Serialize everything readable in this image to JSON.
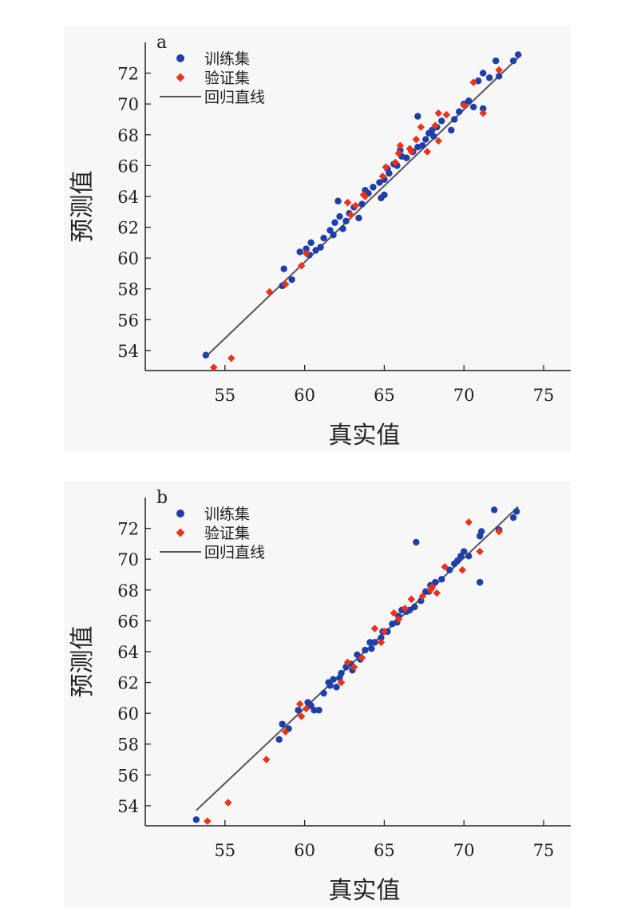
{
  "colors": {
    "train": "#1f3fa8",
    "valid": "#e8341c",
    "line": "#555555",
    "axis": "#222222"
  },
  "chart_data": [
    {
      "type": "scatter",
      "panel_label": "a",
      "xlabel": "真实值",
      "ylabel": "预测值",
      "xlim": [
        50,
        76.7
      ],
      "ylim": [
        52.7,
        74
      ],
      "xticks": [
        55,
        60,
        65,
        70,
        75
      ],
      "yticks": [
        54,
        56,
        58,
        60,
        62,
        64,
        66,
        68,
        70,
        72
      ],
      "grid": false,
      "legend_position": "top-left",
      "legend": [
        "训练集",
        "验证集",
        "回归直线"
      ],
      "regression_line": {
        "from": [
          53.8,
          53.6
        ],
        "to": [
          73.6,
          73.2
        ]
      },
      "series": [
        {
          "name": "训练集",
          "marker": "circle",
          "points": [
            [
              53.8,
              53.7
            ],
            [
              58.6,
              58.2
            ],
            [
              58.7,
              59.3
            ],
            [
              59.2,
              58.6
            ],
            [
              59.7,
              60.4
            ],
            [
              60.1,
              60.6
            ],
            [
              60.4,
              61.0
            ],
            [
              60.7,
              60.5
            ],
            [
              61.0,
              60.7
            ],
            [
              61.2,
              61.3
            ],
            [
              61.6,
              61.8
            ],
            [
              61.9,
              62.3
            ],
            [
              62.2,
              62.7
            ],
            [
              62.1,
              63.7
            ],
            [
              62.4,
              61.9
            ],
            [
              62.8,
              62.9
            ],
            [
              63.1,
              63.3
            ],
            [
              63.6,
              63.5
            ],
            [
              63.8,
              64.4
            ],
            [
              64.0,
              64.2
            ],
            [
              64.3,
              64.6
            ],
            [
              64.7,
              64.9
            ],
            [
              65.0,
              65.1
            ],
            [
              65.0,
              64.1
            ],
            [
              65.3,
              65.5
            ],
            [
              65.6,
              66.1
            ],
            [
              65.8,
              66.0
            ],
            [
              66.1,
              66.6
            ],
            [
              66.4,
              66.5
            ],
            [
              66.8,
              66.9
            ],
            [
              67.1,
              67.2
            ],
            [
              67.1,
              69.2
            ],
            [
              67.4,
              67.3
            ],
            [
              67.8,
              68.1
            ],
            [
              68.1,
              67.9
            ],
            [
              68.3,
              68.5
            ],
            [
              68.6,
              68.9
            ],
            [
              69.2,
              68.3
            ],
            [
              69.4,
              69.0
            ],
            [
              69.7,
              69.5
            ],
            [
              70.0,
              70.0
            ],
            [
              70.3,
              70.2
            ],
            [
              70.6,
              69.8
            ],
            [
              70.9,
              71.5
            ],
            [
              71.2,
              72.0
            ],
            [
              71.2,
              69.7
            ],
            [
              71.6,
              71.7
            ],
            [
              72.0,
              72.8
            ],
            [
              72.2,
              71.8
            ],
            [
              73.1,
              72.8
            ],
            [
              73.4,
              73.2
            ],
            [
              64.8,
              63.9
            ],
            [
              61.8,
              61.5
            ],
            [
              63.4,
              62.6
            ],
            [
              66.0,
              67.0
            ],
            [
              68.0,
              68.3
            ],
            [
              60.3,
              60.2
            ],
            [
              62.6,
              62.4
            ],
            [
              65.2,
              65.8
            ],
            [
              67.6,
              67.7
            ]
          ]
        },
        {
          "name": "验证集",
          "marker": "diamond",
          "points": [
            [
              54.3,
              52.9
            ],
            [
              55.4,
              53.5
            ],
            [
              57.8,
              57.8
            ],
            [
              58.8,
              58.3
            ],
            [
              59.8,
              59.5
            ],
            [
              60.1,
              60.3
            ],
            [
              62.7,
              63.6
            ],
            [
              63.2,
              63.4
            ],
            [
              63.8,
              64.0
            ],
            [
              64.9,
              65.3
            ],
            [
              65.1,
              65.9
            ],
            [
              65.7,
              66.2
            ],
            [
              65.9,
              66.8
            ],
            [
              66.0,
              67.3
            ],
            [
              66.7,
              66.9
            ],
            [
              67.0,
              67.7
            ],
            [
              67.3,
              68.5
            ],
            [
              67.7,
              66.9
            ],
            [
              68.2,
              68.6
            ],
            [
              68.4,
              69.4
            ],
            [
              68.9,
              69.3
            ],
            [
              70.0,
              69.9
            ],
            [
              70.6,
              71.4
            ],
            [
              71.2,
              69.4
            ],
            [
              72.2,
              72.2
            ],
            [
              62.9,
              62.8
            ],
            [
              63.7,
              64.1
            ],
            [
              66.6,
              67.1
            ],
            [
              68.4,
              67.6
            ]
          ]
        }
      ]
    },
    {
      "type": "scatter",
      "panel_label": "b",
      "xlabel": "真实值",
      "ylabel": "预测值",
      "xlim": [
        50,
        76.7
      ],
      "ylim": [
        52.7,
        74
      ],
      "xticks": [
        55,
        60,
        65,
        70,
        75
      ],
      "yticks": [
        54,
        56,
        58,
        60,
        62,
        64,
        66,
        68,
        70,
        72
      ],
      "grid": false,
      "legend_position": "top-left",
      "legend": [
        "训练集",
        "验证集",
        "回归直线"
      ],
      "regression_line": {
        "from": [
          53.2,
          53.7
        ],
        "to": [
          73.4,
          73.4
        ]
      },
      "series": [
        {
          "name": "训练集",
          "marker": "circle",
          "points": [
            [
              53.2,
              53.1
            ],
            [
              58.4,
              58.3
            ],
            [
              58.6,
              59.3
            ],
            [
              59.0,
              59.0
            ],
            [
              59.6,
              60.2
            ],
            [
              60.2,
              60.7
            ],
            [
              60.6,
              60.2
            ],
            [
              60.9,
              60.2
            ],
            [
              61.2,
              61.3
            ],
            [
              61.5,
              62.0
            ],
            [
              61.8,
              62.2
            ],
            [
              62.0,
              61.7
            ],
            [
              62.3,
              62.6
            ],
            [
              62.6,
              63.0
            ],
            [
              62.9,
              63.2
            ],
            [
              63.3,
              63.8
            ],
            [
              63.5,
              63.5
            ],
            [
              63.8,
              64.1
            ],
            [
              64.1,
              64.6
            ],
            [
              64.4,
              64.6
            ],
            [
              64.8,
              64.9
            ],
            [
              65.2,
              65.3
            ],
            [
              65.5,
              65.8
            ],
            [
              65.8,
              65.9
            ],
            [
              66.1,
              66.7
            ],
            [
              66.4,
              66.6
            ],
            [
              66.9,
              66.9
            ],
            [
              67.0,
              71.1
            ],
            [
              67.3,
              67.3
            ],
            [
              67.6,
              67.9
            ],
            [
              67.9,
              68.3
            ],
            [
              68.2,
              68.5
            ],
            [
              68.6,
              68.7
            ],
            [
              69.1,
              69.3
            ],
            [
              69.4,
              69.7
            ],
            [
              69.8,
              70.2
            ],
            [
              70.0,
              70.5
            ],
            [
              70.3,
              70.2
            ],
            [
              71.0,
              71.5
            ],
            [
              71.0,
              68.5
            ],
            [
              71.1,
              71.8
            ],
            [
              71.9,
              73.2
            ],
            [
              72.2,
              71.9
            ],
            [
              73.1,
              72.7
            ],
            [
              73.3,
              73.1
            ],
            [
              62.2,
              62.3
            ],
            [
              64.2,
              64.2
            ],
            [
              65.9,
              66.3
            ],
            [
              68.0,
              68.2
            ],
            [
              60.4,
              60.5
            ],
            [
              63.0,
              62.8
            ],
            [
              66.6,
              66.7
            ],
            [
              61.6,
              61.8
            ],
            [
              64.9,
              65.3
            ],
            [
              67.8,
              67.9
            ],
            [
              69.6,
              69.9
            ]
          ]
        },
        {
          "name": "验证集",
          "marker": "diamond",
          "points": [
            [
              53.9,
              53.0
            ],
            [
              55.2,
              54.2
            ],
            [
              57.6,
              57.0
            ],
            [
              58.8,
              58.8
            ],
            [
              59.7,
              60.6
            ],
            [
              59.8,
              59.8
            ],
            [
              60.1,
              60.3
            ],
            [
              62.7,
              63.3
            ],
            [
              63.1,
              63.0
            ],
            [
              63.6,
              63.6
            ],
            [
              64.4,
              65.5
            ],
            [
              65.0,
              65.3
            ],
            [
              65.6,
              66.5
            ],
            [
              65.9,
              66.1
            ],
            [
              66.7,
              67.4
            ],
            [
              67.4,
              67.6
            ],
            [
              68.0,
              68.2
            ],
            [
              68.3,
              67.8
            ],
            [
              68.8,
              69.5
            ],
            [
              69.9,
              69.3
            ],
            [
              70.3,
              72.4
            ],
            [
              71.0,
              70.5
            ],
            [
              72.2,
              71.8
            ],
            [
              62.3,
              62.0
            ],
            [
              64.8,
              64.6
            ],
            [
              66.3,
              66.8
            ],
            [
              67.9,
              68.0
            ]
          ]
        }
      ]
    }
  ]
}
